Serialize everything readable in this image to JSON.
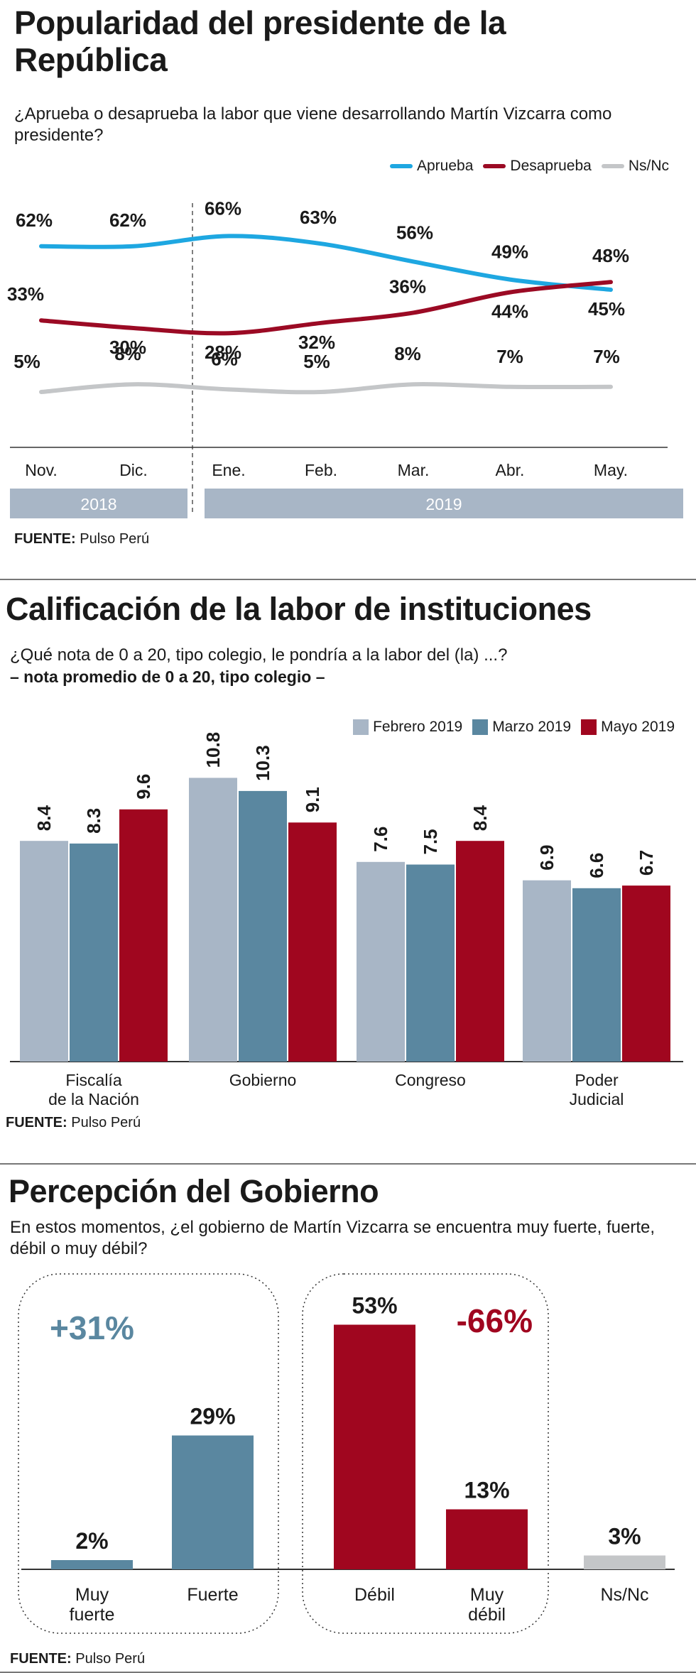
{
  "chart_data": [
    {
      "type": "line",
      "title": "Popularidad del presidente de la República",
      "subtitle": "¿Aprueba o desaprueba la labor que viene desarrollando Martín Vizcarra como presidente?",
      "categories": [
        "Nov.",
        "Dic.",
        "Ene.",
        "Feb.",
        "Mar.",
        "Abr.",
        "May."
      ],
      "year_bands": [
        {
          "label": "2018",
          "span": [
            "Nov.",
            "Dic."
          ]
        },
        {
          "label": "2019",
          "span": [
            "Ene.",
            "May."
          ]
        }
      ],
      "series": [
        {
          "name": "Aprueba",
          "color": "#1ea7e1",
          "values": [
            62,
            62,
            66,
            63,
            56,
            49,
            45
          ]
        },
        {
          "name": "Desaprueba",
          "color": "#9b0a24",
          "values": [
            33,
            30,
            28,
            32,
            36,
            44,
            48
          ]
        },
        {
          "name": "Ns/Nc",
          "color": "#c4c6c8",
          "values": [
            5,
            8,
            6,
            5,
            8,
            7,
            7
          ]
        }
      ],
      "data_labels": {
        "Aprueba": [
          "62%",
          "62%",
          "66%",
          "63%",
          "56%",
          "49%",
          "45%"
        ],
        "Desaprueba": [
          "33%",
          "30%",
          "28%",
          "32%",
          "36%",
          "44%",
          "48%"
        ],
        "Ns/Nc": [
          "5%",
          "8%",
          "6%",
          "5%",
          "8%",
          "7%",
          "7%"
        ]
      },
      "legend_position": "top-right",
      "source_label": "FUENTE:",
      "source": "Pulso Perú"
    },
    {
      "type": "bar",
      "title": "Calificación de la labor de instituciones",
      "subtitle": "¿Qué nota de 0 a 20, tipo colegio, le pondría a la labor del (la) ...?",
      "note": "– nota promedio de 0 a 20, tipo colegio –",
      "categories": [
        [
          "Fiscalía",
          "de la Nación"
        ],
        [
          "Gobierno"
        ],
        [
          "Congreso"
        ],
        [
          "Poder",
          "Judicial"
        ]
      ],
      "series": [
        {
          "name": "Febrero 2019",
          "color": "#a8b6c6",
          "values": [
            8.4,
            10.8,
            7.6,
            6.9
          ]
        },
        {
          "name": "Marzo 2019",
          "color": "#5a87a0",
          "values": [
            8.3,
            10.3,
            7.5,
            6.6
          ]
        },
        {
          "name": "Mayo 2019",
          "color": "#a0061f",
          "values": [
            9.6,
            9.1,
            8.4,
            6.7
          ]
        }
      ],
      "legend_position": "top-right",
      "source_label": "FUENTE:",
      "source": "Pulso Perú"
    },
    {
      "type": "bar",
      "title": "Percepción del Gobierno",
      "subtitle": "En estos momentos, ¿el gobierno de Martín Vizcarra se encuentra muy fuerte, fuerte, débil o muy débil?",
      "categories": [
        [
          "Muy",
          "fuerte"
        ],
        [
          "Fuerte"
        ],
        [
          "Débil"
        ],
        [
          "Muy",
          "débil"
        ],
        [
          "Ns/Nc"
        ]
      ],
      "values": [
        2,
        29,
        53,
        13,
        3
      ],
      "value_labels": [
        "2%",
        "29%",
        "53%",
        "13%",
        "3%"
      ],
      "colors": [
        "#5a87a0",
        "#5a87a0",
        "#a0061f",
        "#a0061f",
        "#c4c6c8"
      ],
      "groups": [
        {
          "label": "+31%",
          "color": "#5a87a0",
          "members": [
            0,
            1
          ]
        },
        {
          "label": "-66%",
          "color": "#a0061f",
          "members": [
            2,
            3
          ]
        }
      ],
      "source_label": "FUENTE:",
      "source": "Pulso Perú"
    }
  ]
}
